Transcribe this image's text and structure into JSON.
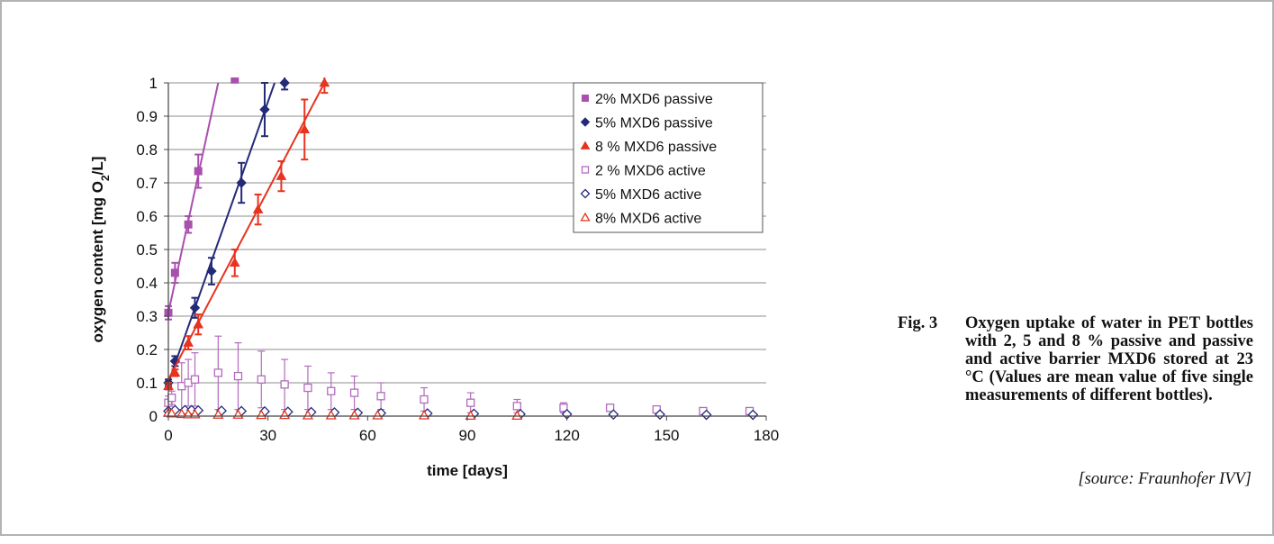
{
  "figure": {
    "label": "Fig. 3",
    "caption": "Oxygen uptake of water in PET bottles with 2, 5 and 8 % passive and passive and active barrier MXD6 stored at 23 °C (Values are mean value of five single measurements of different bottles).",
    "source": "[source: Fraunhofer IVV]"
  },
  "chart_data": {
    "type": "scatter",
    "xlabel": "time [days]",
    "ylabel": "oxygen content [mg O2/L]",
    "xlim": [
      0,
      180
    ],
    "ylim": [
      0,
      1
    ],
    "x_ticks": [
      "0",
      "30",
      "60",
      "90",
      "120",
      "150",
      "180"
    ],
    "y_ticks": [
      "0",
      "0.1",
      "0.2",
      "0.3",
      "0.4",
      "0.5",
      "0.6",
      "0.7",
      "0.8",
      "0.9",
      "1"
    ],
    "grid": "horizontal",
    "legend_position": "top-right",
    "series": [
      {
        "name": "2% MXD6 passive",
        "marker": "square",
        "filled": true,
        "color": "#a94fae",
        "trendline": [
          [
            0,
            0.31
          ],
          [
            15,
            1.0
          ]
        ],
        "points": [
          [
            0,
            0.31,
            0.02
          ],
          [
            2,
            0.43,
            0.03
          ],
          [
            6,
            0.575,
            0.025
          ],
          [
            9,
            0.735,
            0.05
          ],
          [
            20,
            1.01,
            0
          ]
        ]
      },
      {
        "name": "5% MXD6 passive",
        "marker": "diamond",
        "filled": true,
        "color": "#232a78",
        "trendline": [
          [
            0,
            0.1
          ],
          [
            32,
            1.0
          ]
        ],
        "points": [
          [
            0,
            0.1,
            0.01
          ],
          [
            2,
            0.165,
            0.015
          ],
          [
            8,
            0.325,
            0.03
          ],
          [
            13,
            0.435,
            0.04
          ],
          [
            22,
            0.7,
            0.06
          ],
          [
            29,
            0.92,
            0.08
          ],
          [
            35,
            1.0,
            0.02
          ]
        ]
      },
      {
        "name": "8 % MXD6 passive",
        "marker": "triangle",
        "filled": true,
        "color": "#e8331f",
        "trendline": [
          [
            0,
            0.11
          ],
          [
            47,
            1.0
          ]
        ],
        "points": [
          [
            0,
            0.09,
            0.01
          ],
          [
            2,
            0.13,
            0.01
          ],
          [
            6,
            0.22,
            0.02
          ],
          [
            9,
            0.275,
            0.03
          ],
          [
            20,
            0.46,
            0.04
          ],
          [
            27,
            0.62,
            0.045
          ],
          [
            34,
            0.72,
            0.045
          ],
          [
            41,
            0.86,
            0.09
          ],
          [
            47,
            1.0,
            0.03
          ]
        ]
      },
      {
        "name": "2 % MXD6 active",
        "marker": "square",
        "filled": false,
        "color": "#b36bbf",
        "points": [
          [
            0,
            0.04,
            0.02
          ],
          [
            1,
            0.055,
            0.02
          ],
          [
            4,
            0.09,
            0.07
          ],
          [
            6,
            0.1,
            0.07
          ],
          [
            8,
            0.11,
            0.08
          ],
          [
            15,
            0.13,
            0.11
          ],
          [
            21,
            0.12,
            0.1
          ],
          [
            28,
            0.11,
            0.085
          ],
          [
            35,
            0.095,
            0.075
          ],
          [
            42,
            0.085,
            0.065
          ],
          [
            49,
            0.075,
            0.055
          ],
          [
            56,
            0.07,
            0.05
          ],
          [
            64,
            0.06,
            0.04
          ],
          [
            77,
            0.05,
            0.035
          ],
          [
            91,
            0.04,
            0.03
          ],
          [
            105,
            0.03,
            0.02
          ],
          [
            119,
            0.025,
            0.015
          ],
          [
            133,
            0.025,
            0.01
          ],
          [
            147,
            0.02,
            0.008
          ],
          [
            161,
            0.015,
            0.008
          ],
          [
            175,
            0.015,
            0.006
          ]
        ]
      },
      {
        "name": "5% MXD6 active",
        "marker": "diamond",
        "filled": false,
        "color": "#232a78",
        "points": [
          [
            0,
            0.015,
            0
          ],
          [
            2,
            0.018,
            0
          ],
          [
            5,
            0.018,
            0
          ],
          [
            7,
            0.018,
            0
          ],
          [
            9,
            0.017,
            0
          ],
          [
            16,
            0.016,
            0
          ],
          [
            22,
            0.015,
            0
          ],
          [
            29,
            0.014,
            0
          ],
          [
            36,
            0.013,
            0
          ],
          [
            43,
            0.012,
            0
          ],
          [
            50,
            0.011,
            0
          ],
          [
            57,
            0.01,
            0
          ],
          [
            64,
            0.009,
            0
          ],
          [
            78,
            0.008,
            0
          ],
          [
            92,
            0.007,
            0
          ],
          [
            106,
            0.006,
            0
          ],
          [
            120,
            0.006,
            0
          ],
          [
            134,
            0.005,
            0
          ],
          [
            148,
            0.005,
            0
          ],
          [
            162,
            0.004,
            0
          ],
          [
            176,
            0.004,
            0
          ]
        ]
      },
      {
        "name": "8% MXD6 active",
        "marker": "triangle",
        "filled": false,
        "color": "#e8331f",
        "points": [
          [
            0,
            0.01,
            0
          ],
          [
            1,
            0.008,
            0
          ],
          [
            4,
            0.006,
            0
          ],
          [
            6,
            0.005,
            0
          ],
          [
            8,
            0.005,
            0
          ],
          [
            15,
            0.004,
            0
          ],
          [
            21,
            0.004,
            0
          ],
          [
            28,
            0.003,
            0
          ],
          [
            35,
            0.003,
            0
          ],
          [
            42,
            0.002,
            0
          ],
          [
            49,
            0.002,
            0
          ],
          [
            56,
            0.002,
            0
          ],
          [
            63,
            0.002,
            0
          ],
          [
            77,
            0.002,
            0
          ],
          [
            91,
            0.001,
            0
          ],
          [
            105,
            0.001,
            0
          ]
        ]
      }
    ]
  }
}
